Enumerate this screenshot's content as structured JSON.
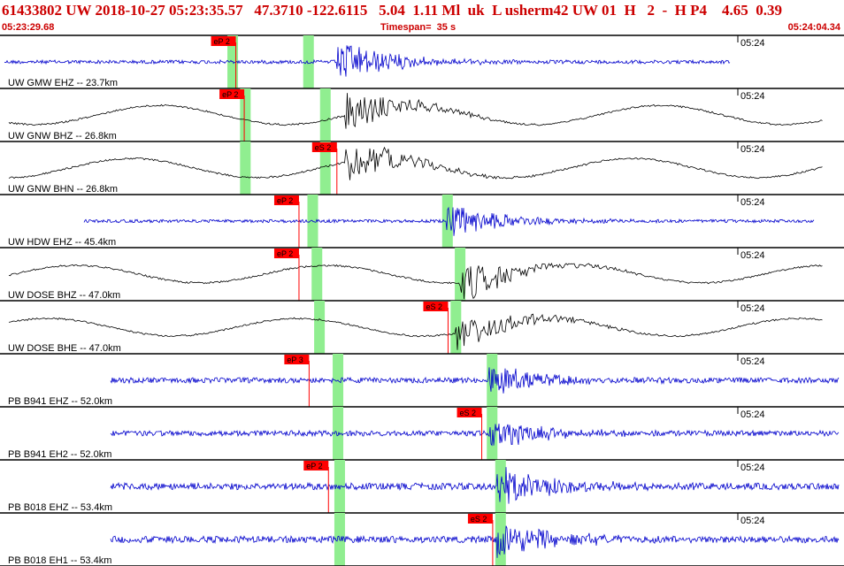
{
  "header": {
    "title": "61433802 UW 2018-10-27 05:23:35.57   47.3710 -122.6115   5.04  1.11 Ml  uk  L usherm42 UW 01  H   2  -  H P4    4.65  0.39",
    "start_time": "05:23:29.68",
    "timespan": "Timespan=  35 s",
    "end_time": "05:24:04.34"
  },
  "colors": {
    "short_period": "#0000cc",
    "broadband": "#000000",
    "pick_flag": "#ff0000",
    "pick_window": "#90ee90",
    "title": "#cc0000"
  },
  "traces": [
    {
      "label": "UW GMW EHZ -- 23.7km",
      "time_mark": "05:24",
      "kind": "short_period",
      "p_pick": {
        "label": "eP 2",
        "t": 0.28
      },
      "s_pick": null,
      "windows": [
        0.27,
        0.36
      ],
      "arrival": 0.4,
      "amp": 0.8
    },
    {
      "label": "UW GNW BHZ -- 26.8km",
      "time_mark": "05:24",
      "kind": "broadband",
      "p_pick": {
        "label": "eP 2",
        "t": 0.29
      },
      "s_pick": null,
      "windows": [
        0.285,
        0.38
      ],
      "arrival": 0.41,
      "amp": 0.6
    },
    {
      "label": "UW GNW BHN -- 26.8km",
      "time_mark": "05:24",
      "kind": "broadband",
      "p_pick": null,
      "s_pick": {
        "label": "eS 2",
        "t": 0.4
      },
      "windows": [
        0.285,
        0.38
      ],
      "arrival": 0.41,
      "amp": 0.6
    },
    {
      "label": "UW HDW EHZ -- 45.4km",
      "time_mark": "05:24",
      "kind": "short_period",
      "p_pick": {
        "label": "eP 2",
        "t": 0.355
      },
      "s_pick": null,
      "windows": [
        0.365,
        0.525
      ],
      "arrival": 0.53,
      "amp": 0.7
    },
    {
      "label": "UW DOSE BHZ -- 47.0km",
      "time_mark": "05:24",
      "kind": "broadband",
      "p_pick": {
        "label": "eP 2",
        "t": 0.355
      },
      "s_pick": null,
      "windows": [
        0.37,
        0.54
      ],
      "arrival": 0.545,
      "amp": 0.55
    },
    {
      "label": "UW DOSE BHE -- 47.0km",
      "time_mark": "05:24",
      "kind": "broadband",
      "p_pick": null,
      "s_pick": {
        "label": "eS 2",
        "t": 0.532
      },
      "windows": [
        0.373,
        0.535
      ],
      "arrival": 0.54,
      "amp": 0.55
    },
    {
      "label": "PB B941 EHZ -- 52.0km",
      "time_mark": "05:24",
      "kind": "short_period",
      "p_pick": {
        "label": "eP 3",
        "t": 0.367
      },
      "s_pick": null,
      "windows": [
        0.395,
        0.578
      ],
      "arrival": 0.58,
      "amp": 0.6
    },
    {
      "label": "PB B941 EH2 -- 52.0km",
      "time_mark": "05:24",
      "kind": "short_period",
      "p_pick": null,
      "s_pick": {
        "label": "eS 2",
        "t": 0.572
      },
      "windows": [
        0.395,
        0.578
      ],
      "arrival": 0.58,
      "amp": 0.6
    },
    {
      "label": "PB B018 EHZ -- 53.4km",
      "time_mark": "05:24",
      "kind": "short_period",
      "p_pick": {
        "label": "eP 2",
        "t": 0.39
      },
      "s_pick": null,
      "windows": [
        0.397,
        0.588
      ],
      "arrival": 0.59,
      "amp": 0.75
    },
    {
      "label": "PB B018 EH1 -- 53.4km",
      "time_mark": "05:24",
      "kind": "short_period",
      "p_pick": null,
      "s_pick": {
        "label": "eS 2",
        "t": 0.585
      },
      "windows": [
        0.397,
        0.588
      ],
      "arrival": 0.59,
      "amp": 0.75
    }
  ]
}
